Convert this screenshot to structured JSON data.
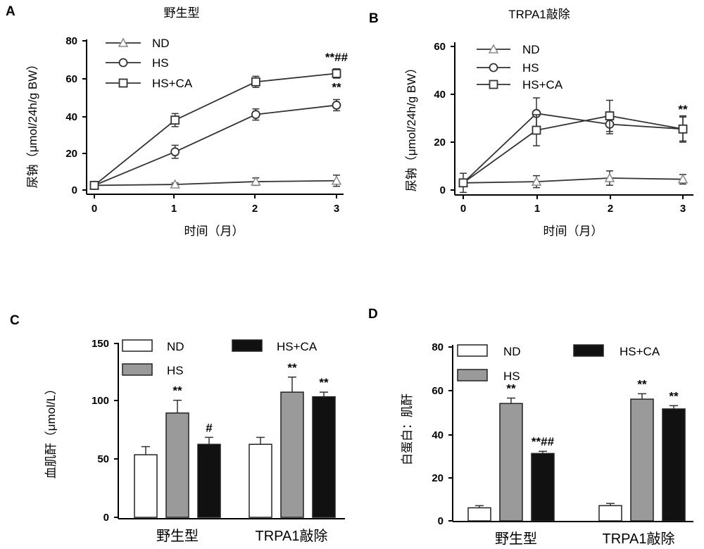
{
  "chart_data": [
    {
      "panel": "A",
      "type": "line",
      "title": "野生型",
      "xlabel": "时间（月）",
      "ylabel": "尿钠（μmol/24h/g BW）",
      "x": [
        0,
        1,
        2,
        3
      ],
      "ylim": [
        0,
        80
      ],
      "yticks": [
        0,
        20,
        40,
        60,
        80
      ],
      "legend_position": "top-left",
      "series": [
        {
          "name": "ND",
          "marker": "triangle",
          "values": [
            2.5,
            3,
            4.5,
            5
          ],
          "errors": [
            1,
            0.8,
            2,
            3
          ]
        },
        {
          "name": "HS",
          "marker": "circle",
          "values": [
            2.5,
            20.5,
            40.5,
            45.5
          ],
          "errors": [
            1,
            3.5,
            3,
            3
          ]
        },
        {
          "name": "HS+CA",
          "marker": "square",
          "values": [
            2.5,
            37.5,
            58,
            62.5
          ],
          "errors": [
            1,
            3.5,
            3,
            2.5
          ]
        }
      ],
      "annotations": [
        {
          "text": "**##",
          "x": 3,
          "y": 69
        },
        {
          "text": "**",
          "x": 3,
          "y": 53
        }
      ]
    },
    {
      "panel": "B",
      "type": "line",
      "title": "TRPA1敲除",
      "xlabel": "时间（月）",
      "ylabel": "尿钠（μmol/24h/g BW）",
      "x": [
        0,
        1,
        2,
        3
      ],
      "ylim": [
        0,
        60
      ],
      "yticks": [
        0,
        20,
        40,
        60
      ],
      "legend_position": "top-left",
      "series": [
        {
          "name": "ND",
          "marker": "triangle",
          "values": [
            3,
            3.5,
            5,
            4.5
          ],
          "errors": [
            4,
            2.5,
            3,
            2
          ]
        },
        {
          "name": "HS",
          "marker": "circle",
          "values": [
            3,
            32,
            27.5,
            25.5
          ],
          "errors": [
            1,
            6.5,
            4,
            5
          ]
        },
        {
          "name": "HS+CA",
          "marker": "square",
          "values": [
            3,
            25,
            31,
            25.5
          ],
          "errors": [
            1,
            6.5,
            6.5,
            5.5
          ]
        }
      ],
      "annotations": [
        {
          "text": "**",
          "x": 3,
          "y": 32
        }
      ]
    },
    {
      "panel": "C",
      "type": "bar",
      "title": "",
      "ylabel": "血肌酐（μmol/L）",
      "categories": [
        "野生型",
        "TRPA1敲除"
      ],
      "ylim": [
        0,
        150
      ],
      "yticks": [
        0,
        50,
        100,
        150
      ],
      "legend_position": "top",
      "series": [
        {
          "name": "ND",
          "color": "#ffffff",
          "values": [
            54,
            63
          ],
          "errors": [
            7,
            6
          ],
          "labels": [
            "",
            ""
          ]
        },
        {
          "name": "HS",
          "color": "#9a9a9a",
          "values": [
            90,
            108
          ],
          "errors": [
            11,
            13
          ],
          "labels": [
            "**",
            "**"
          ]
        },
        {
          "name": "HS+CA",
          "color": "#111111",
          "values": [
            63,
            104
          ],
          "errors": [
            6,
            4
          ],
          "labels": [
            "#",
            "**"
          ]
        }
      ]
    },
    {
      "panel": "D",
      "type": "bar",
      "title": "",
      "ylabel": "白蛋白：肌酐",
      "categories": [
        "野生型",
        "TRPA1敲除"
      ],
      "ylim": [
        0,
        80
      ],
      "yticks": [
        0,
        20,
        40,
        60,
        80
      ],
      "legend_position": "top",
      "series": [
        {
          "name": "ND",
          "color": "#ffffff",
          "values": [
            6,
            7
          ],
          "errors": [
            1,
            1
          ],
          "labels": [
            "",
            ""
          ]
        },
        {
          "name": "HS",
          "color": "#9a9a9a",
          "values": [
            54,
            56
          ],
          "errors": [
            2.5,
            2.5
          ],
          "labels": [
            "**",
            "**"
          ]
        },
        {
          "name": "HS+CA",
          "color": "#111111",
          "values": [
            31,
            51.5
          ],
          "errors": [
            1,
            1.5
          ],
          "labels": [
            "**##",
            "**"
          ]
        }
      ]
    }
  ]
}
